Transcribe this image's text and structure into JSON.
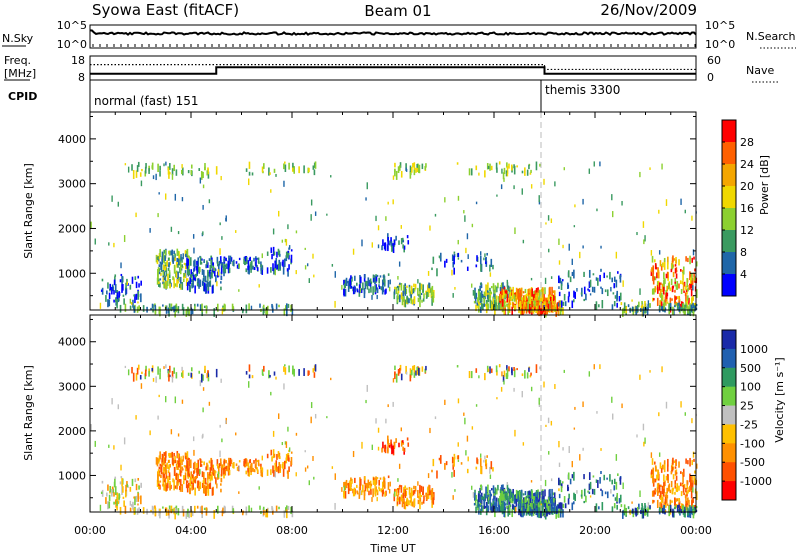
{
  "header": {
    "station": "Syowa East (fitACF)",
    "beam": "Beam 01",
    "date": "26/Nov/2009"
  },
  "noise_panel": {
    "left_label": "N.Sky",
    "right_label": "N.Search",
    "ticks_left": [
      "10^5",
      "10^0"
    ],
    "ticks_right": [
      "10^5",
      "10^0"
    ]
  },
  "freq_panel": {
    "left_label_line1": "Freq.",
    "left_label_line2": "[MHz]",
    "right_label": "Nave",
    "ticks_left": [
      "18",
      "8"
    ],
    "ticks_right": [
      "60",
      "0"
    ],
    "solid_steps": [
      {
        "t": 0.0,
        "f": 10.6
      },
      {
        "t": 5.0,
        "f": 13.3
      },
      {
        "t": 18.0,
        "f": 10.6
      },
      {
        "t": 24.0,
        "f": 10.6
      }
    ],
    "dotted_steps": [
      {
        "t": 0.0,
        "f": 14.4
      },
      {
        "t": 18.0,
        "f": 12.4
      },
      {
        "t": 24.0,
        "f": 12.4
      }
    ]
  },
  "cpid": {
    "label": "CPID",
    "segments": [
      {
        "text": "normal (fast) 151",
        "start_hr": 0
      },
      {
        "text": "themis 3300",
        "start_hr": 18
      }
    ]
  },
  "chart_data": [
    {
      "type": "heatmap",
      "quantity": "power",
      "ylabel": "Slant Range [km]",
      "yticks": [
        1000,
        2000,
        3000,
        4000
      ],
      "ylim": [
        180,
        4600
      ],
      "colorbar_label": "Power [dB]",
      "colorbar_ticks": [
        "28",
        "24",
        "20",
        "16",
        "12",
        "8",
        "4"
      ],
      "colorbar_colors": [
        "#ff0000",
        "#ff6000",
        "#f4a600",
        "#f0d800",
        "#8cd030",
        "#3a9a60",
        "#1f66a8",
        "#0000ff"
      ]
    },
    {
      "type": "heatmap",
      "quantity": "velocity",
      "ylabel": "Slant Range [km]",
      "yticks": [
        1000,
        2000,
        3000,
        4000
      ],
      "ylim": [
        180,
        4600
      ],
      "colorbar_label": "Velocity [m s⁻¹]",
      "colorbar_ticks": [
        "1000",
        "500",
        "100",
        "25",
        "-25",
        "-100",
        "-500",
        "-1000"
      ],
      "colorbar_colors": [
        "#1a2aa8",
        "#2060b0",
        "#2f9a60",
        "#70d040",
        "#c0c0c0",
        "#ffc000",
        "#ff9000",
        "#ff5000",
        "#ff0000"
      ]
    }
  ],
  "time_axis": {
    "xlabel": "Time UT",
    "xlim_hours": [
      0,
      24
    ],
    "ticks": [
      "00:00",
      "04:00",
      "08:00",
      "12:00",
      "16:00",
      "20:00",
      "00:00"
    ]
  }
}
